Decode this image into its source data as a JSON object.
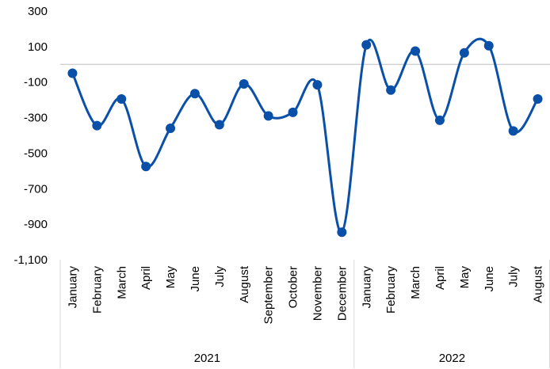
{
  "chart_data": {
    "type": "line",
    "smooth": true,
    "grid": false,
    "title": "",
    "xlabel": "",
    "ylabel": "",
    "ylim": [
      -1100,
      300
    ],
    "yticks": [
      300,
      100,
      -100,
      -300,
      -500,
      -700,
      -900,
      -1100
    ],
    "ytick_labels": [
      "300",
      "100",
      "-100",
      "-300",
      "-500",
      "-700",
      "-900",
      "-1,100"
    ],
    "categories": [
      "January",
      "February",
      "March",
      "April",
      "May",
      "June",
      "July",
      "August",
      "September",
      "October",
      "November",
      "December",
      "January",
      "February",
      "March",
      "April",
      "May",
      "June",
      "July",
      "August"
    ],
    "groups": [
      {
        "label": "2021",
        "count": 12
      },
      {
        "label": "2022",
        "count": 8
      }
    ],
    "series": [
      {
        "color": "#0a4fa8",
        "values": [
          -50,
          -345,
          -195,
          -575,
          -360,
          -165,
          -340,
          -110,
          -290,
          -270,
          -115,
          -945,
          110,
          -145,
          75,
          -315,
          65,
          105,
          -375,
          -195
        ]
      }
    ]
  }
}
